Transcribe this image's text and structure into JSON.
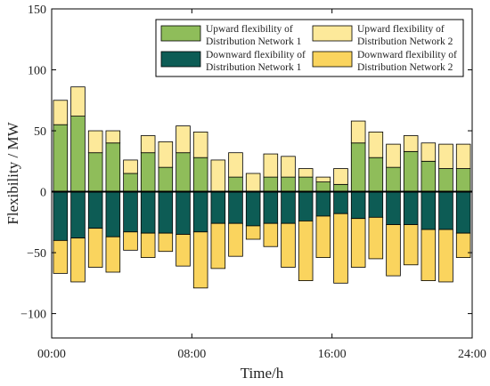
{
  "chart_data": {
    "type": "bar",
    "stacked": true,
    "xlabel": "Time/h",
    "ylabel": "Flexibility / MW",
    "ylim": [
      -120,
      150
    ],
    "xlim": [
      0,
      24
    ],
    "yticks": [
      -100,
      -50,
      0,
      50,
      100,
      150
    ],
    "xticks": [
      0,
      8,
      16,
      24
    ],
    "xtick_labels": [
      "00:00",
      "08:00",
      "16:00",
      "24:00"
    ],
    "legend_position": "top-right",
    "bar_centers": [
      0.5,
      1.5,
      2.5,
      3.5,
      4.5,
      5.5,
      6.5,
      7.5,
      8.5,
      9.5,
      10.5,
      11.5,
      12.5,
      13.5,
      14.5,
      15.5,
      16.5,
      17.5,
      18.5,
      19.5,
      20.5,
      21.5,
      22.5,
      23.5
    ],
    "series": [
      {
        "name": "Upward flexibility of Distribution Network 1",
        "stack": "up",
        "color": "#8fbd5a",
        "values": [
          55,
          62,
          32,
          40,
          15,
          32,
          20,
          32,
          28,
          0,
          12,
          0,
          12,
          12,
          12,
          8,
          6,
          40,
          28,
          20,
          33,
          25,
          19,
          19
        ]
      },
      {
        "name": "Upward flexibility of Distribution Network 2",
        "stack": "up",
        "color": "#fde99a",
        "values": [
          20,
          24,
          18,
          10,
          11,
          14,
          21,
          22,
          21,
          26,
          20,
          15,
          19,
          17,
          7,
          4,
          13,
          18,
          21,
          19,
          13,
          15,
          20,
          20
        ]
      },
      {
        "name": "Downward flexibility of Distribution Network 1",
        "stack": "down",
        "color": "#0d5c55",
        "values": [
          -40,
          -38,
          -30,
          -37,
          -33,
          -34,
          -34,
          -35,
          -33,
          -26,
          -26,
          -28,
          -26,
          -26,
          -24,
          -20,
          -18,
          -22,
          -21,
          -27,
          -27,
          -31,
          -31,
          -34
        ]
      },
      {
        "name": "Downward flexibility of Distribution Network 2",
        "stack": "down",
        "color": "#fad45e",
        "values": [
          -27,
          -36,
          -32,
          -29,
          -15,
          -20,
          -15,
          -26,
          -46,
          -37,
          -27,
          -11,
          -19,
          -36,
          -49,
          -34,
          -57,
          -40,
          -34,
          -42,
          -33,
          -42,
          -43,
          -20
        ]
      }
    ]
  }
}
